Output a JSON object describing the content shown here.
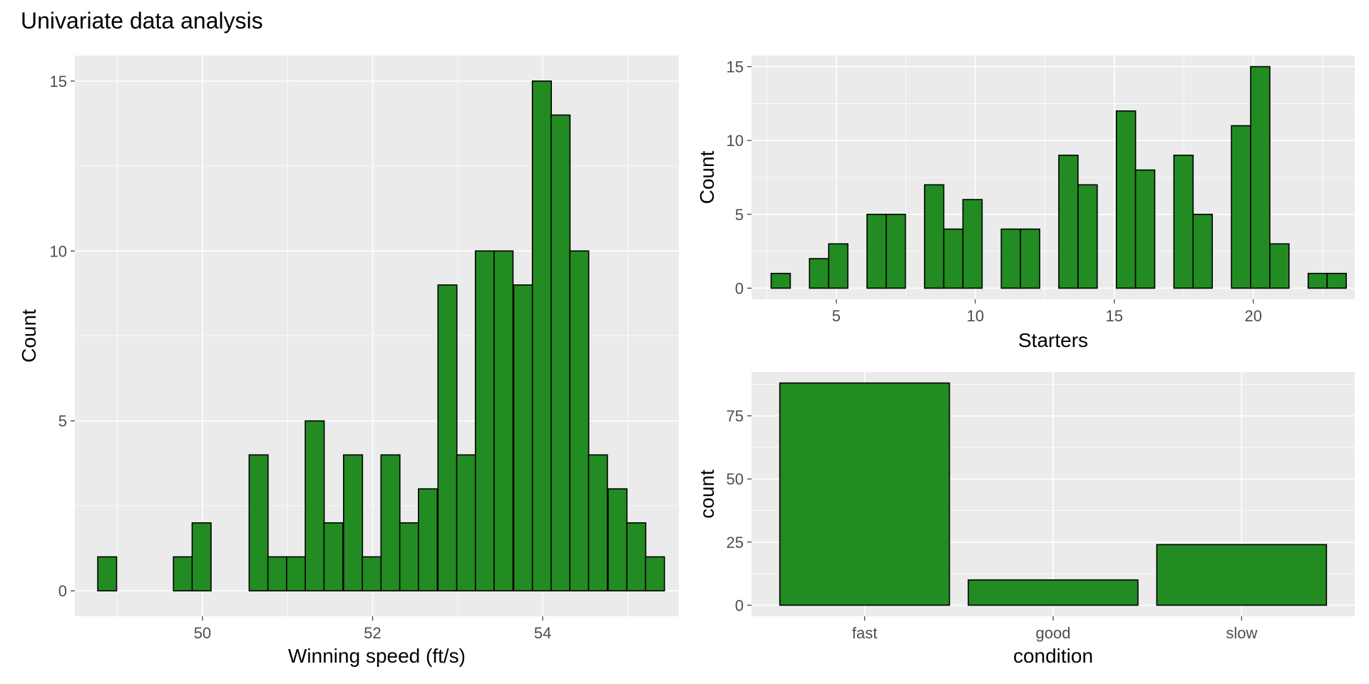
{
  "title": "Univariate data analysis",
  "colors": {
    "panel": "#ebebeb",
    "grid": "#ffffff",
    "bar_fill": "#228b22",
    "bar_stroke": "#000000",
    "tick_text": "#4d4d4d"
  },
  "chart_data": [
    {
      "type": "bar",
      "xlabel": "Winning speed (ft/s)",
      "ylabel": "Count",
      "xlim": [
        48.5,
        55.6
      ],
      "ylim": [
        -0.75,
        15.75
      ],
      "x_ticks": [
        50,
        52,
        54
      ],
      "y_ticks": [
        0,
        5,
        10,
        15
      ],
      "binwidth": 0.222,
      "bin_centers": [
        48.88,
        49.1,
        49.32,
        49.55,
        49.77,
        49.99,
        50.21,
        50.43,
        50.66,
        50.88,
        51.1,
        51.32,
        51.54,
        51.77,
        51.99,
        52.21,
        52.43,
        52.65,
        52.88,
        53.1,
        53.32,
        53.54,
        53.77,
        53.99,
        54.21,
        54.43,
        54.65,
        54.88,
        55.1,
        55.32
      ],
      "values": [
        1,
        0,
        0,
        0,
        1,
        2,
        0,
        0,
        4,
        1,
        1,
        5,
        2,
        4,
        1,
        4,
        2,
        3,
        9,
        4,
        10,
        10,
        9,
        15,
        14,
        10,
        4,
        3,
        2,
        1
      ]
    },
    {
      "type": "bar",
      "xlabel": "Starters",
      "ylabel": "Count",
      "xlim": [
        1.95,
        23.65
      ],
      "ylim": [
        -0.75,
        15.75
      ],
      "x_ticks": [
        5,
        10,
        15,
        20
      ],
      "y_ticks": [
        0,
        5,
        10,
        15
      ],
      "binwidth": 0.69,
      "bin_centers": [
        3.0,
        3.69,
        4.38,
        5.07,
        5.76,
        6.45,
        7.14,
        7.83,
        8.52,
        9.21,
        9.9,
        10.59,
        11.28,
        11.97,
        12.66,
        13.35,
        14.04,
        14.73,
        15.42,
        16.11,
        16.8,
        17.49,
        18.18,
        18.87,
        19.56,
        20.25,
        20.94,
        21.63,
        22.32,
        23.0
      ],
      "values": [
        1,
        0,
        2,
        3,
        0,
        5,
        5,
        0,
        7,
        4,
        6,
        0,
        4,
        4,
        0,
        9,
        7,
        0,
        12,
        8,
        0,
        9,
        5,
        0,
        11,
        15,
        3,
        0,
        1,
        1
      ]
    },
    {
      "type": "bar",
      "xlabel": "condition",
      "ylabel": "count",
      "categories": [
        "fast",
        "good",
        "slow"
      ],
      "values": [
        88,
        10,
        24
      ],
      "ylim": [
        -4.4,
        92.4
      ],
      "y_ticks": [
        0,
        25,
        50,
        75
      ]
    }
  ]
}
